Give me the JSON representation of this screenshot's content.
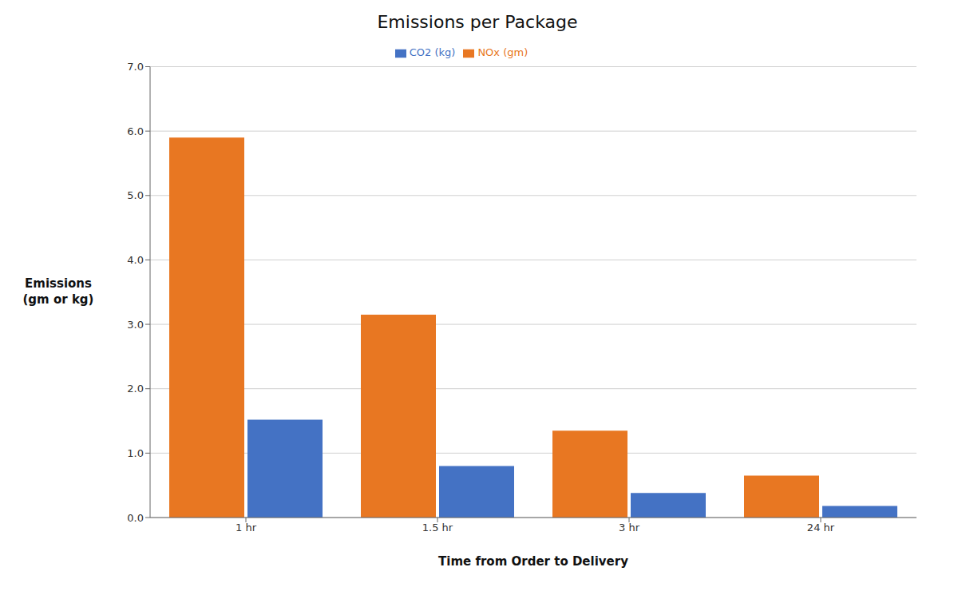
{
  "chart_data": {
    "type": "bar",
    "title": "Emissions per Package",
    "xlabel": "Time from Order to Delivery",
    "ylabel": "Emissions\n(gm or kg)",
    "categories": [
      "1 hr",
      "1.5 hr",
      "3 hr",
      "24 hr"
    ],
    "series": [
      {
        "name": "NOx (gm)",
        "color": "#E87722",
        "values": [
          5.9,
          3.15,
          1.35,
          0.65
        ]
      },
      {
        "name": "CO2 (kg)",
        "color": "#4472C4",
        "values": [
          1.52,
          0.8,
          0.38,
          0.18
        ]
      }
    ],
    "ylim": [
      0.0,
      7.0
    ],
    "yticks": [
      {
        "value": 0,
        "label": "0.0"
      },
      {
        "value": 1,
        "label": "1.0"
      },
      {
        "value": 2,
        "label": "2.0"
      },
      {
        "value": 3,
        "label": "3.0"
      },
      {
        "value": 4,
        "label": "4.0"
      },
      {
        "value": 5,
        "label": "5.0"
      },
      {
        "value": 6,
        "label": "6.0"
      },
      {
        "value": 7,
        "label": "7.0"
      }
    ],
    "grid": true,
    "legend": "top"
  }
}
